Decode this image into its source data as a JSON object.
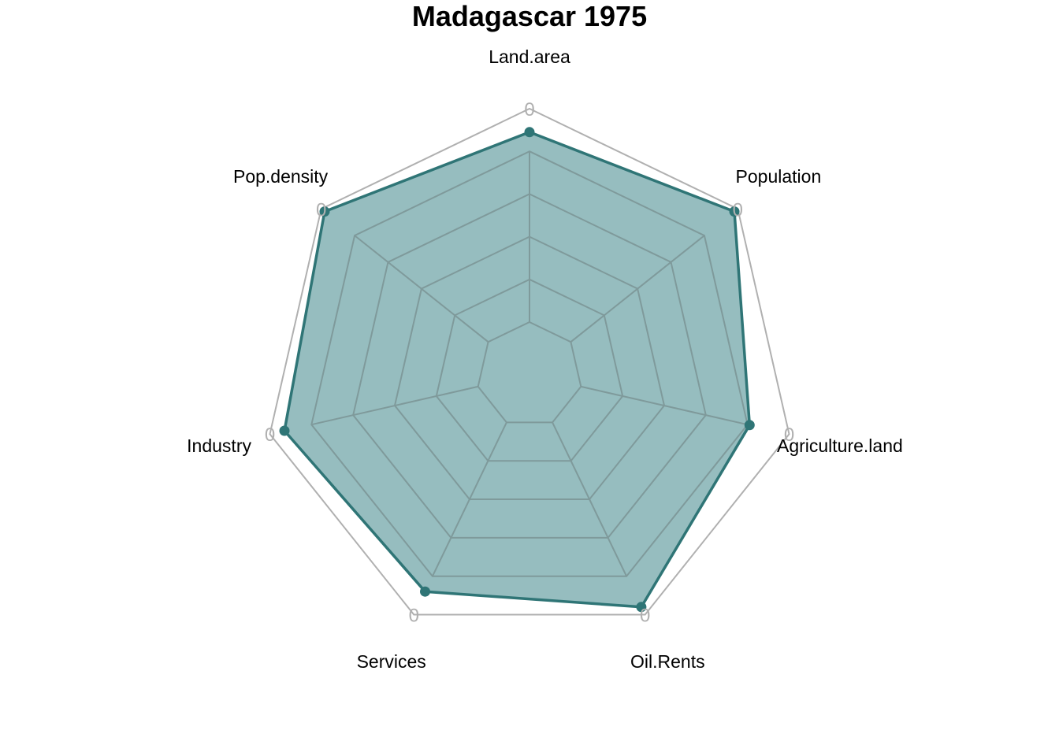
{
  "chart_data": {
    "type": "radar",
    "title": "Madagascar 1975",
    "axes": [
      "Land.area",
      "Population",
      "Agriculture.land",
      "Oil.Rents",
      "Services",
      "Industry",
      "Pop.density"
    ],
    "series": [
      {
        "values": [
          0.89,
          0.98,
          0.81,
          0.96,
          0.88,
          0.93,
          0.98
        ]
      }
    ],
    "range": [
      0,
      1
    ],
    "grid_levels": 5,
    "outer_ring_tick_label": "0",
    "colors": {
      "fill": "#2e7b7f",
      "fill_opacity": 0.5,
      "line": "#2f7576",
      "point": "#2f7576",
      "grid": "#7f9a9b",
      "outer_ring": "#b0b0b0"
    },
    "legend": "none"
  }
}
